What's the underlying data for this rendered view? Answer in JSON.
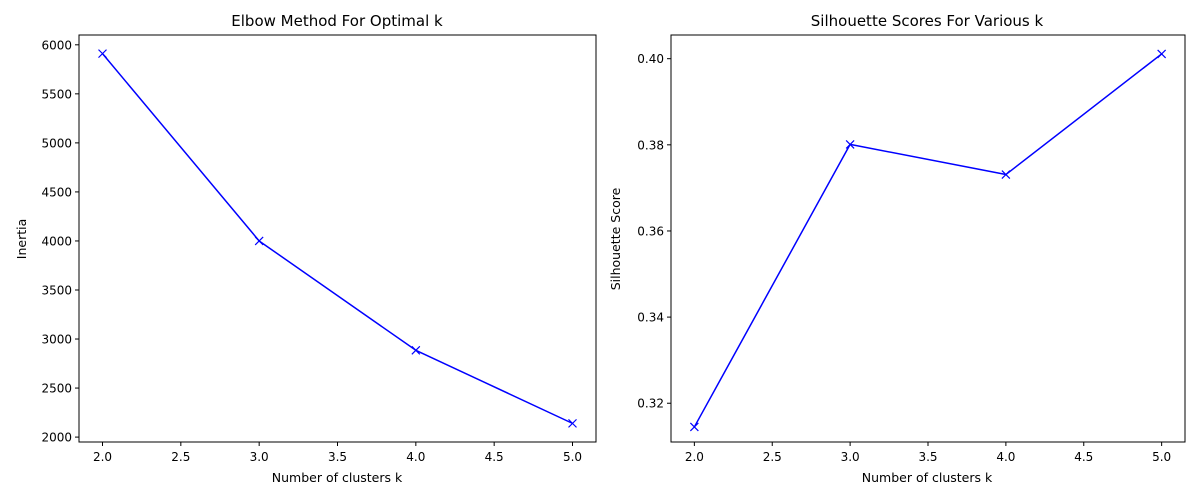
{
  "chart_data": [
    {
      "type": "line",
      "title": "Elbow Method For Optimal k",
      "xlabel": "Number of clusters k",
      "ylabel": "Inertia",
      "x": [
        2,
        3,
        4,
        5
      ],
      "series": [
        {
          "values": [
            5910,
            4000,
            2885,
            2140
          ],
          "color": "#0000ff",
          "marker": "x"
        }
      ],
      "xlim": [
        1.85,
        5.15
      ],
      "ylim": [
        1950,
        6100
      ],
      "xticks": [
        2.0,
        2.5,
        3.0,
        3.5,
        4.0,
        4.5,
        5.0
      ],
      "xtick_labels": [
        "2.0",
        "2.5",
        "3.0",
        "3.5",
        "4.0",
        "4.5",
        "5.0"
      ],
      "yticks": [
        2000,
        2500,
        3000,
        3500,
        4000,
        4500,
        5000,
        5500,
        6000
      ],
      "ytick_labels": [
        "2000",
        "2500",
        "3000",
        "3500",
        "4000",
        "4500",
        "5000",
        "5500",
        "6000"
      ],
      "grid": false
    },
    {
      "type": "line",
      "title": "Silhouette Scores For Various k",
      "xlabel": "Number of clusters k",
      "ylabel": "Silhouette Score",
      "x": [
        2,
        3,
        4,
        5
      ],
      "series": [
        {
          "values": [
            0.3145,
            0.3801,
            0.3731,
            0.4011
          ],
          "color": "#0000ff",
          "marker": "x"
        }
      ],
      "xlim": [
        1.85,
        5.15
      ],
      "ylim": [
        0.311,
        0.4055
      ],
      "xticks": [
        2.0,
        2.5,
        3.0,
        3.5,
        4.0,
        4.5,
        5.0
      ],
      "xtick_labels": [
        "2.0",
        "2.5",
        "3.0",
        "3.5",
        "4.0",
        "4.5",
        "5.0"
      ],
      "yticks": [
        0.32,
        0.34,
        0.36,
        0.38,
        0.4
      ],
      "ytick_labels": [
        "0.32",
        "0.34",
        "0.36",
        "0.38",
        "0.40"
      ],
      "grid": false
    }
  ]
}
